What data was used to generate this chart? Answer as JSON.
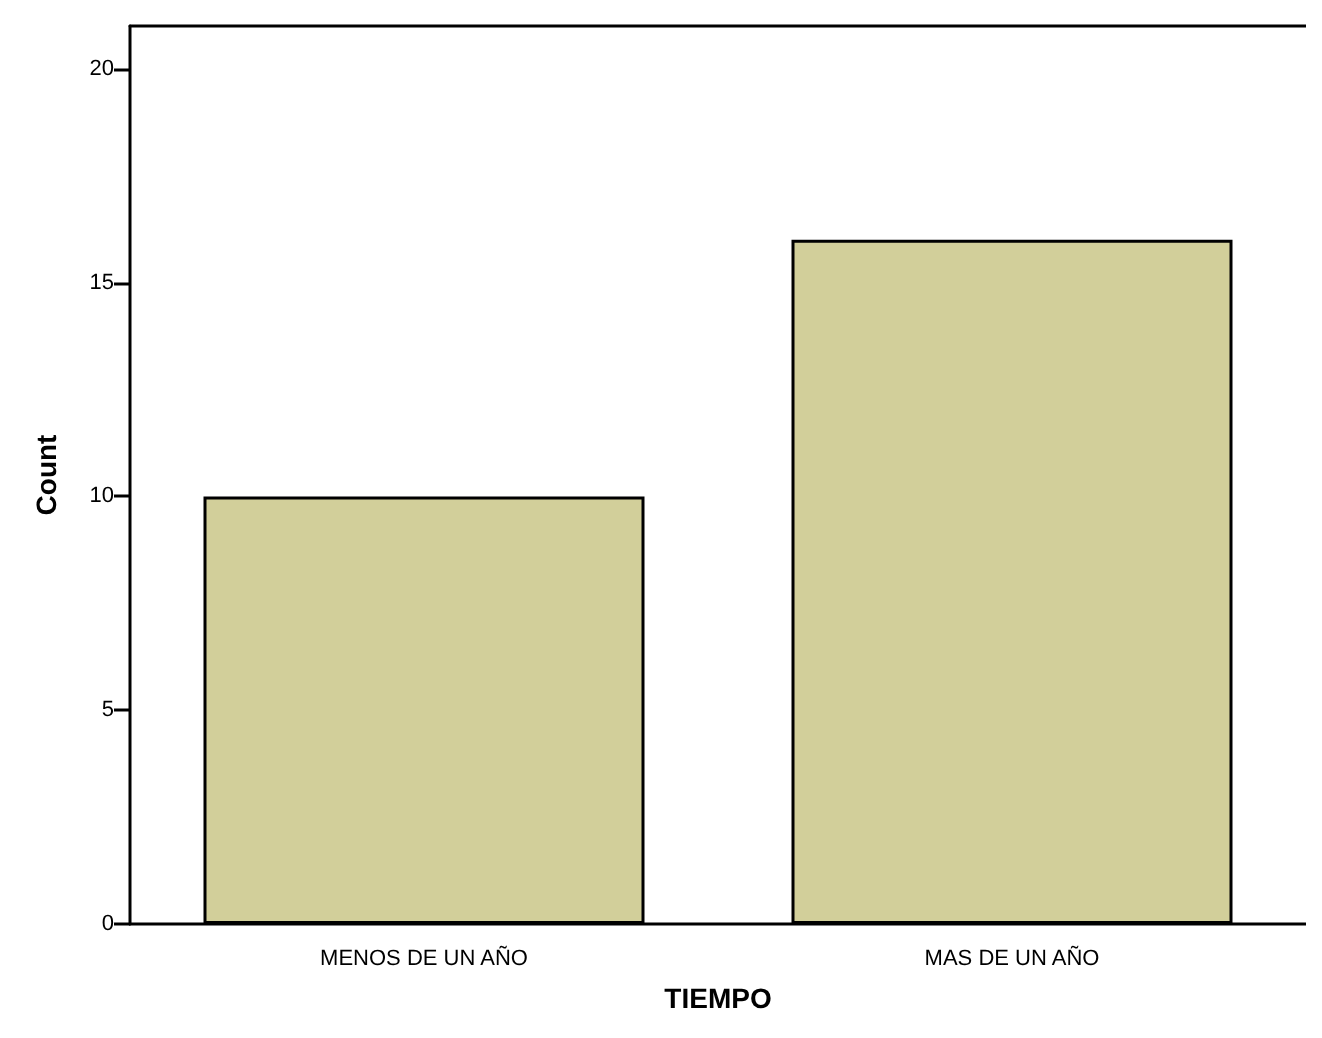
{
  "chart_data": {
    "type": "bar",
    "xlabel": "TIEMPO",
    "ylabel": "Count",
    "categories": [
      "MENOS DE UN AÑO",
      "MAS DE UN AÑO"
    ],
    "values": [
      10,
      16
    ],
    "color": "#d2cf9a",
    "ylim": [
      0,
      21
    ],
    "yticks": [
      0,
      5,
      10,
      15,
      20
    ],
    "grid": false
  }
}
